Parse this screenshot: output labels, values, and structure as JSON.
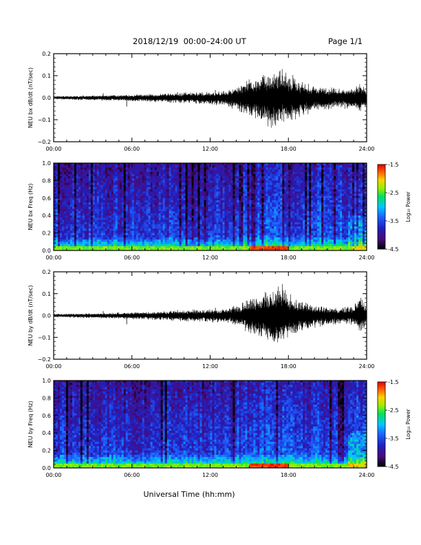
{
  "header": {
    "title": "2018/12/19  00:00–24:00 UT",
    "page": "Page 1/1"
  },
  "colors": {
    "trace": "#000000",
    "colormap": [
      "#000000",
      "#4a0a7a",
      "#2020c0",
      "#1e60ff",
      "#00c8ff",
      "#00e060",
      "#9aef00",
      "#ffd000",
      "#ff6000",
      "#e00000"
    ]
  },
  "chart_data": [
    {
      "type": "line",
      "panel": "bx-time",
      "ylabel": "NEU bx dB/dt (nT/sec)",
      "xlim": [
        0,
        24
      ],
      "ylim": [
        -0.2,
        0.2
      ],
      "xtick_labels": [
        "00:00",
        "06:00",
        "12:00",
        "18:00",
        "24:00"
      ],
      "ytick_labels": [
        "0.2",
        "0.1",
        "0.0",
        "−0.1",
        "−0.2"
      ],
      "ytick_values": [
        0.2,
        0.1,
        0.0,
        -0.1,
        -0.2
      ],
      "envelope": {
        "x": [
          0,
          2,
          4,
          5,
          6,
          8,
          10,
          11,
          12,
          13,
          14,
          15,
          16,
          17,
          17.5,
          18,
          19,
          20,
          21,
          22,
          23,
          23.5,
          24
        ],
        "upper": [
          0.008,
          0.01,
          0.012,
          0.015,
          0.015,
          0.02,
          0.025,
          0.028,
          0.03,
          0.035,
          0.05,
          0.09,
          0.12,
          0.13,
          0.16,
          0.12,
          0.08,
          0.06,
          0.05,
          0.045,
          0.05,
          0.07,
          0.05
        ],
        "lower": [
          -0.008,
          -0.012,
          -0.015,
          -0.015,
          -0.02,
          -0.022,
          -0.028,
          -0.03,
          -0.035,
          -0.04,
          -0.06,
          -0.1,
          -0.12,
          -0.17,
          -0.14,
          -0.12,
          -0.09,
          -0.07,
          -0.06,
          -0.05,
          -0.06,
          -0.07,
          -0.05
        ]
      }
    },
    {
      "type": "heatmap",
      "panel": "bx-freq",
      "ylabel": "NEU bx Freq (Hz)",
      "xlim": [
        0,
        24
      ],
      "ylim": [
        0,
        1.0
      ],
      "xtick_labels": [
        "00:00",
        "06:00",
        "12:00",
        "18:00",
        "24:00"
      ],
      "ytick_labels": [
        "1.0",
        "0.8",
        "0.6",
        "0.4",
        "0.2",
        "0.0"
      ],
      "ytick_values": [
        1.0,
        0.8,
        0.6,
        0.4,
        0.2,
        0.0
      ],
      "colorbar": {
        "label": "Log₁₀ Power",
        "range": [
          -4.5,
          -1.5
        ],
        "tick_labels": [
          "-1.5",
          "-2.5",
          "-3.5",
          "-4.5"
        ],
        "tick_values": [
          -1.5,
          -2.5,
          -3.5,
          -4.5
        ]
      },
      "hot_band": {
        "freq_max": 0.05,
        "peak_time": [
          15,
          18
        ],
        "peak_value": -1.7
      },
      "seed": 7
    },
    {
      "type": "line",
      "panel": "by-time",
      "ylabel": "NEU by dB/dt (nT/sec)",
      "xlim": [
        0,
        24
      ],
      "ylim": [
        -0.2,
        0.2
      ],
      "xtick_labels": [
        "00:00",
        "06:00",
        "12:00",
        "18:00",
        "24:00"
      ],
      "ytick_labels": [
        "0.2",
        "0.1",
        "0.0",
        "−0.1",
        "−0.2"
      ],
      "ytick_values": [
        0.2,
        0.1,
        0.0,
        -0.1,
        -0.2
      ],
      "envelope": {
        "x": [
          0,
          2,
          4,
          5,
          6,
          8,
          10,
          11,
          12,
          13,
          14,
          15,
          16,
          17,
          17.5,
          18,
          19,
          20,
          21,
          22,
          23,
          23.5,
          24
        ],
        "upper": [
          0.008,
          0.01,
          0.012,
          0.015,
          0.015,
          0.02,
          0.025,
          0.03,
          0.03,
          0.03,
          0.05,
          0.08,
          0.12,
          0.14,
          0.16,
          0.11,
          0.07,
          0.05,
          0.04,
          0.04,
          0.05,
          0.1,
          0.05
        ],
        "lower": [
          -0.008,
          -0.012,
          -0.015,
          -0.015,
          -0.02,
          -0.022,
          -0.028,
          -0.03,
          -0.032,
          -0.035,
          -0.05,
          -0.09,
          -0.12,
          -0.17,
          -0.14,
          -0.11,
          -0.08,
          -0.06,
          -0.05,
          -0.04,
          -0.05,
          -0.08,
          -0.05
        ]
      }
    },
    {
      "type": "heatmap",
      "panel": "by-freq",
      "ylabel": "NEU by Freq (Hz)",
      "xlim": [
        0,
        24
      ],
      "ylim": [
        0,
        1.0
      ],
      "xtick_labels": [
        "00:00",
        "06:00",
        "12:00",
        "18:00",
        "24:00"
      ],
      "ytick_labels": [
        "1.0",
        "0.8",
        "0.6",
        "0.4",
        "0.2",
        "0.0"
      ],
      "ytick_values": [
        1.0,
        0.8,
        0.6,
        0.4,
        0.2,
        0.0
      ],
      "colorbar": {
        "label": "Log₁₀ Power",
        "range": [
          -4.5,
          -1.5
        ],
        "tick_labels": [
          "-1.5",
          "-2.5",
          "-3.5",
          "-4.5"
        ],
        "tick_values": [
          -1.5,
          -2.5,
          -3.5,
          -4.5
        ]
      },
      "hot_band": {
        "freq_max": 0.05,
        "peak_time": [
          15,
          18
        ],
        "peak_value": -1.7
      },
      "seed": 13
    }
  ],
  "xlabel": "Universal Time (hh:mm)"
}
